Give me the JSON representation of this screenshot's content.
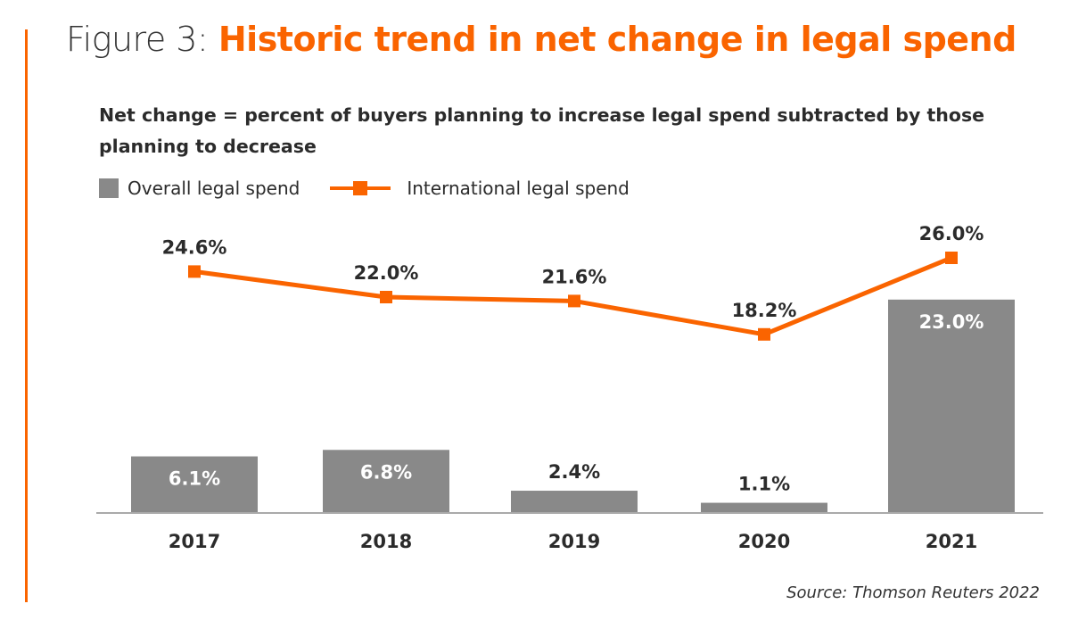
{
  "title": {
    "prefix": "Figure 3:",
    "main": "Historic trend in net change in legal spend"
  },
  "subtitle": "Net change = percent of buyers planning to increase legal spend subtracted by those planning to decrease",
  "source": "Source: Thomson Reuters 2022",
  "colors": {
    "accent": "#fa6400",
    "bar": "#898989",
    "line": "#fa6400",
    "text": "#2b2b2b",
    "axis": "#aaaaaa"
  },
  "chart_data": {
    "type": "bar",
    "title": "Historic trend in net change in legal spend",
    "subtitle": "Net change = percent of buyers planning to increase legal spend subtracted by those planning to decrease",
    "xlabel": "",
    "ylabel": "",
    "categories": [
      "2017",
      "2018",
      "2019",
      "2020",
      "2021"
    ],
    "grid": false,
    "legend_position": "top-left",
    "series": [
      {
        "name": "Overall legal spend",
        "type": "bar",
        "values": [
          6.1,
          6.8,
          2.4,
          1.1,
          23.0
        ],
        "labels": [
          "6.1%",
          "6.8%",
          "2.4%",
          "1.1%",
          "23.0%"
        ]
      },
      {
        "name": "International legal spend",
        "type": "line",
        "marker": "square",
        "values": [
          24.6,
          22.0,
          21.6,
          18.2,
          26.0
        ],
        "labels": [
          "24.6%",
          "22.0%",
          "21.6%",
          "18.2%",
          "26.0%"
        ]
      }
    ],
    "ylim": [
      0,
      28
    ]
  }
}
